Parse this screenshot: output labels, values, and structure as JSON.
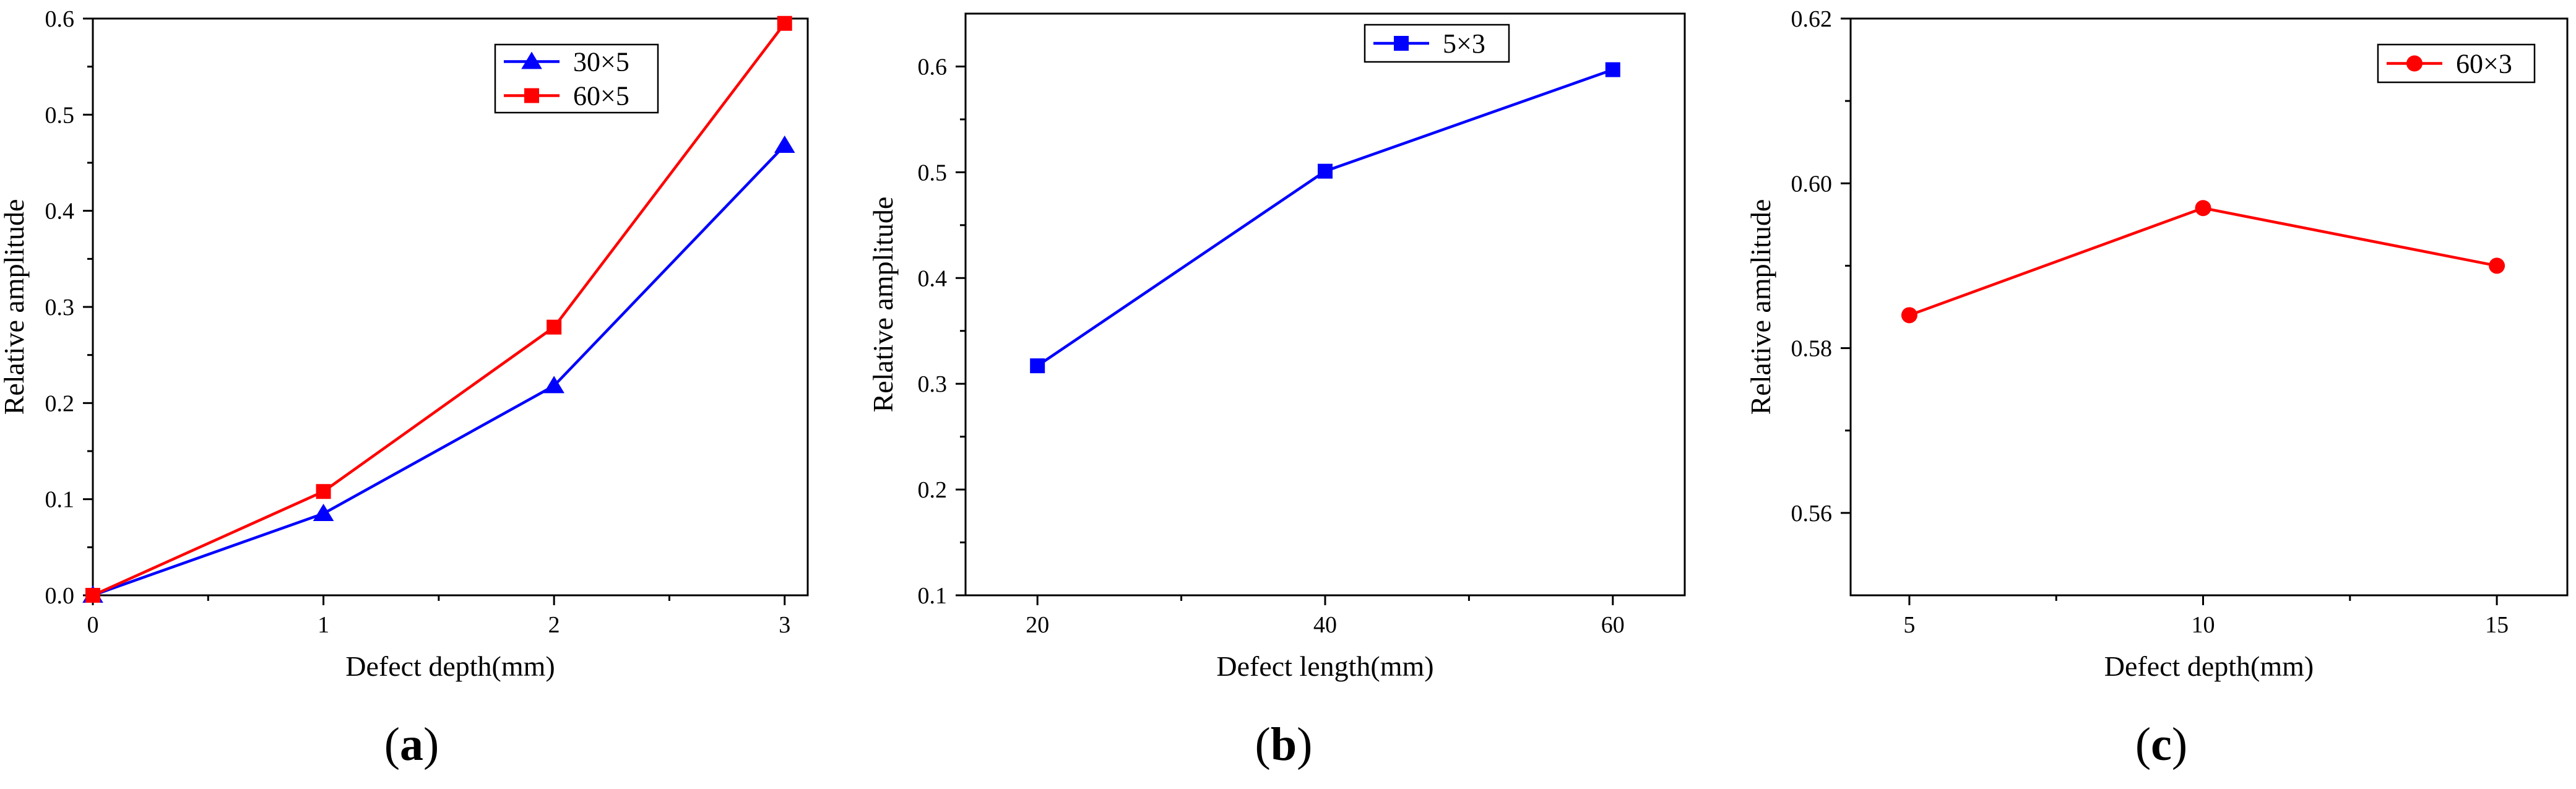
{
  "chart_data": [
    {
      "panel_label": "a",
      "type": "line",
      "xlabel": "Defect depth(mm)",
      "ylabel": "Relative amplitude",
      "xlim": [
        0,
        3.1
      ],
      "ylim": [
        0,
        0.6
      ],
      "xticks": [
        0,
        1,
        2,
        3
      ],
      "yticks": [
        0.0,
        0.1,
        0.2,
        0.3,
        0.4,
        0.5,
        0.6
      ],
      "xtick_labels": [
        "0",
        "1",
        "2",
        "3"
      ],
      "ytick_labels": [
        "0.0",
        "0.1",
        "0.2",
        "0.3",
        "0.4",
        "0.5",
        "0.6"
      ],
      "legend_position": "top-right",
      "series": [
        {
          "name": "30×5",
          "color": "#0000ff",
          "marker": "triangle",
          "x": [
            0,
            1,
            2,
            3
          ],
          "y": [
            0.0,
            0.085,
            0.218,
            0.468
          ]
        },
        {
          "name": "60×5",
          "color": "#ff0000",
          "marker": "square",
          "x": [
            0,
            1,
            2,
            3
          ],
          "y": [
            0.0,
            0.108,
            0.279,
            0.595
          ]
        }
      ]
    },
    {
      "panel_label": "b",
      "type": "line",
      "xlabel": "Defect length(mm)",
      "ylabel": "Relative amplitude",
      "xlim": [
        15,
        65
      ],
      "ylim": [
        0.1,
        0.65
      ],
      "xticks": [
        20,
        40,
        60
      ],
      "yticks": [
        0.1,
        0.2,
        0.3,
        0.4,
        0.5,
        0.6
      ],
      "xtick_labels": [
        "20",
        "40",
        "60"
      ],
      "ytick_labels": [
        "0.1",
        "0.2",
        "0.3",
        "0.4",
        "0.5",
        "0.6"
      ],
      "legend_position": "top-center",
      "series": [
        {
          "name": "5×3",
          "color": "#0000ff",
          "marker": "square",
          "x": [
            20,
            40,
            60
          ],
          "y": [
            0.317,
            0.501,
            0.597
          ]
        }
      ]
    },
    {
      "panel_label": "c",
      "type": "line",
      "xlabel": "Defect depth(mm)",
      "ylabel": "Relative amplitude",
      "xlim": [
        4,
        16.2
      ],
      "ylim": [
        0.55,
        0.62
      ],
      "xticks": [
        5,
        10,
        15
      ],
      "yticks": [
        0.56,
        0.58,
        0.6,
        0.62
      ],
      "xtick_labels": [
        "5",
        "10",
        "15"
      ],
      "ytick_labels": [
        "0.56",
        "0.58",
        "0.60",
        "0.62"
      ],
      "legend_position": "top-right",
      "series": [
        {
          "name": "60×3",
          "color": "#ff0000",
          "marker": "circle",
          "x": [
            5,
            10,
            15
          ],
          "y": [
            0.584,
            0.597,
            0.59
          ]
        }
      ]
    }
  ]
}
